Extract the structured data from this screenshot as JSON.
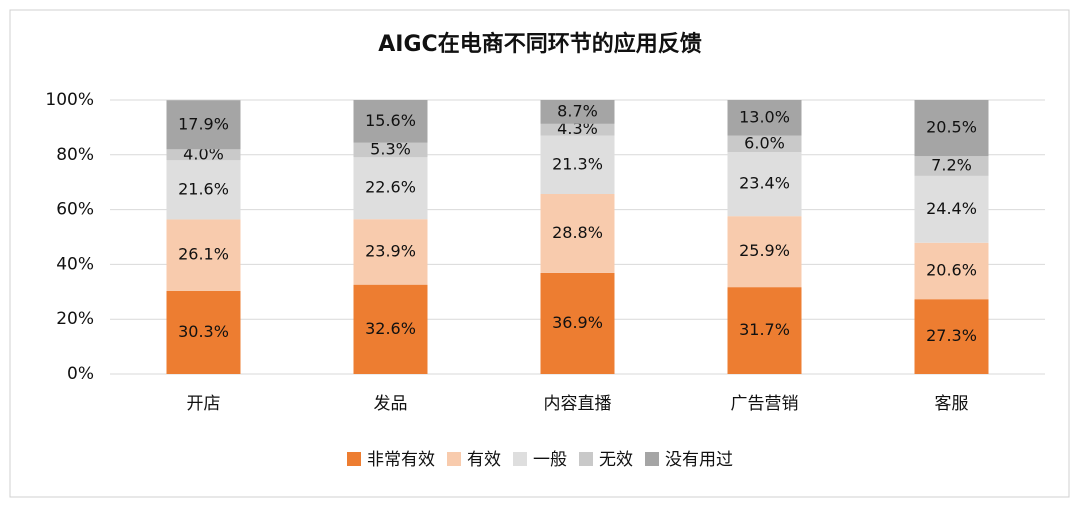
{
  "chart_data": {
    "type": "bar",
    "stacked": true,
    "title": "AIGC在电商不同环节的应用反馈",
    "categories": [
      "开店",
      "发品",
      "内容直播",
      "广告营销",
      "客服"
    ],
    "series": [
      {
        "name": "非常有效",
        "color": "#ED7D31",
        "values": [
          30.3,
          32.6,
          36.9,
          31.7,
          27.3
        ],
        "value_labels": [
          "30.3%",
          "32.6%",
          "36.9%",
          "31.7%",
          "27.3%"
        ]
      },
      {
        "name": "有效",
        "color": "#F8CBAD",
        "values": [
          26.1,
          23.9,
          28.8,
          25.9,
          20.6
        ],
        "value_labels": [
          "26.1%",
          "23.9%",
          "28.8%",
          "25.9%",
          "20.6%"
        ]
      },
      {
        "name": "一般",
        "color": "#DEDEDE",
        "values": [
          21.6,
          22.6,
          21.3,
          23.4,
          24.4
        ],
        "value_labels": [
          "21.6%",
          "22.6%",
          "21.3%",
          "23.4%",
          "24.4%"
        ]
      },
      {
        "name": "无效",
        "color": "#C9C9C9",
        "values": [
          4.0,
          5.3,
          4.3,
          6.0,
          7.2
        ],
        "value_labels": [
          "4.0%",
          "5.3%",
          "4.3%",
          "6.0%",
          "7.2%"
        ]
      },
      {
        "name": "没有用过",
        "color": "#A5A5A5",
        "values": [
          17.9,
          15.6,
          8.7,
          13.0,
          20.5
        ],
        "value_labels": [
          "17.9%",
          "15.6%",
          "8.7%",
          "13.0%",
          "20.5%"
        ]
      }
    ],
    "ylim": [
      0,
      100
    ],
    "yticks": [
      {
        "value": 0,
        "label": "0%"
      },
      {
        "value": 20,
        "label": "20%"
      },
      {
        "value": 40,
        "label": "40%"
      },
      {
        "value": 60,
        "label": "60%"
      },
      {
        "value": 80,
        "label": "80%"
      },
      {
        "value": 100,
        "label": "100%"
      }
    ],
    "grid": true,
    "legend": "bottom"
  }
}
